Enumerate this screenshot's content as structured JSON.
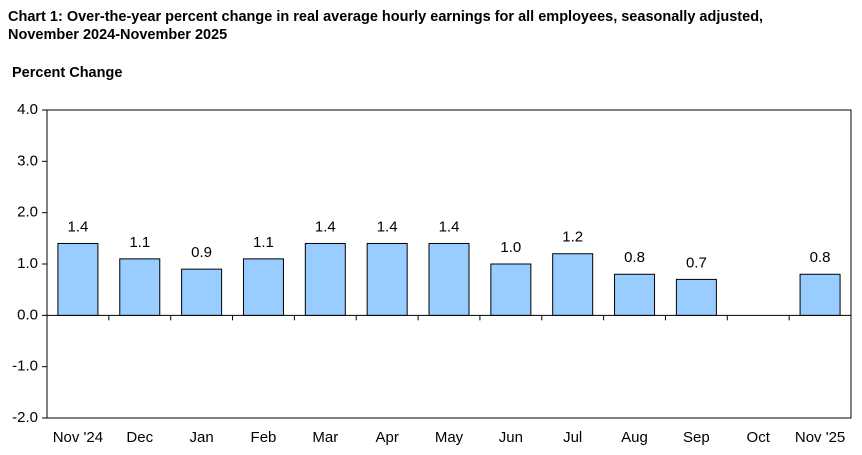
{
  "chart_data": {
    "type": "bar",
    "title": "Chart 1: Over-the-year percent change in real average hourly earnings for all employees, seasonally adjusted, November 2024-November 2025",
    "y_label": "Percent Change",
    "categories": [
      "Nov '24",
      "Dec",
      "Jan",
      "Feb",
      "Mar",
      "Apr",
      "May",
      "Jun",
      "Jul",
      "Aug",
      "Sep",
      "Oct",
      "Nov '25"
    ],
    "values": [
      1.4,
      1.1,
      0.9,
      1.1,
      1.4,
      1.4,
      1.4,
      1.0,
      1.2,
      0.8,
      0.7,
      null,
      0.8
    ],
    "value_labels": [
      "1.4",
      "1.1",
      "0.9",
      "1.1",
      "1.4",
      "1.4",
      "1.4",
      "1.0",
      "1.2",
      "0.8",
      "0.7",
      null,
      "0.8"
    ],
    "color": "#99ccff",
    "ylim": [
      -2,
      4
    ],
    "yticks": [
      {
        "value": -2,
        "label": "-2.0"
      },
      {
        "value": -1,
        "label": "-1.0"
      },
      {
        "value": 0,
        "label": "0.0"
      },
      {
        "value": 1,
        "label": "1.0"
      },
      {
        "value": 2,
        "label": "2.0"
      },
      {
        "value": 3,
        "label": "3.0"
      },
      {
        "value": 4,
        "label": "4.0"
      }
    ],
    "grid": false
  }
}
